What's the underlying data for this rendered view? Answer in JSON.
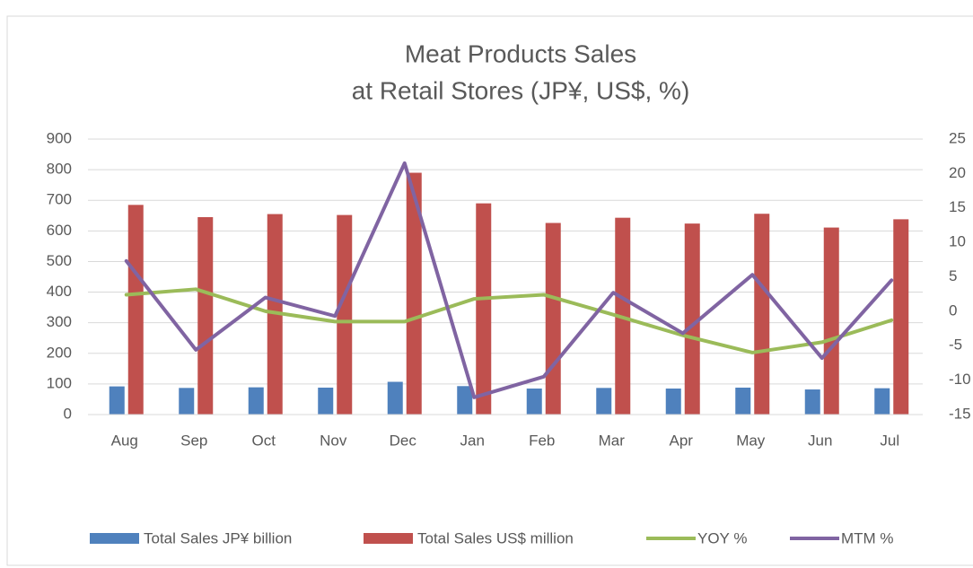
{
  "chart_data": {
    "type": "bar",
    "title": [
      "Meat Products Sales",
      "at Retail Stores (JP¥, US$, %)"
    ],
    "categories": [
      "Aug",
      "Sep",
      "Oct",
      "Nov",
      "Dec",
      "Jan",
      "Feb",
      "Mar",
      "Apr",
      "May",
      "Jun",
      "Jul"
    ],
    "series": [
      {
        "name": "Total Sales JP¥ billion",
        "type": "bar",
        "color": "#4f81bd",
        "values": [
          92,
          87,
          89,
          88,
          107,
          93,
          85,
          87,
          85,
          88,
          82,
          86
        ]
      },
      {
        "name": "Total Sales US$ million",
        "type": "bar",
        "color": "#c0504d",
        "values": [
          685,
          645,
          655,
          652,
          790,
          690,
          626,
          643,
          624,
          656,
          611,
          638
        ]
      },
      {
        "name": "YOY %",
        "type": "line",
        "axis": "y2",
        "color": "#9bbb59",
        "values": [
          2.4,
          3.2,
          0.0,
          -1.5,
          -1.5,
          1.8,
          2.4,
          -0.5,
          -3.5,
          -6.0,
          -4.5,
          -1.3
        ]
      },
      {
        "name": "MTM %",
        "type": "line",
        "axis": "y2",
        "color": "#8064a2",
        "values": [
          7.3,
          -5.6,
          2.0,
          -0.7,
          21.5,
          -12.5,
          -9.5,
          2.7,
          -3.2,
          5.3,
          -6.8,
          4.5
        ]
      }
    ],
    "ylim": [
      0,
      900
    ],
    "yticks": [
      0,
      100,
      200,
      300,
      400,
      500,
      600,
      700,
      800,
      900
    ],
    "y2lim": [
      -15,
      25
    ],
    "y2ticks": [
      -15,
      -10,
      -5,
      0,
      5,
      10,
      15,
      20,
      25
    ],
    "grid": true,
    "legend": "bottom"
  }
}
